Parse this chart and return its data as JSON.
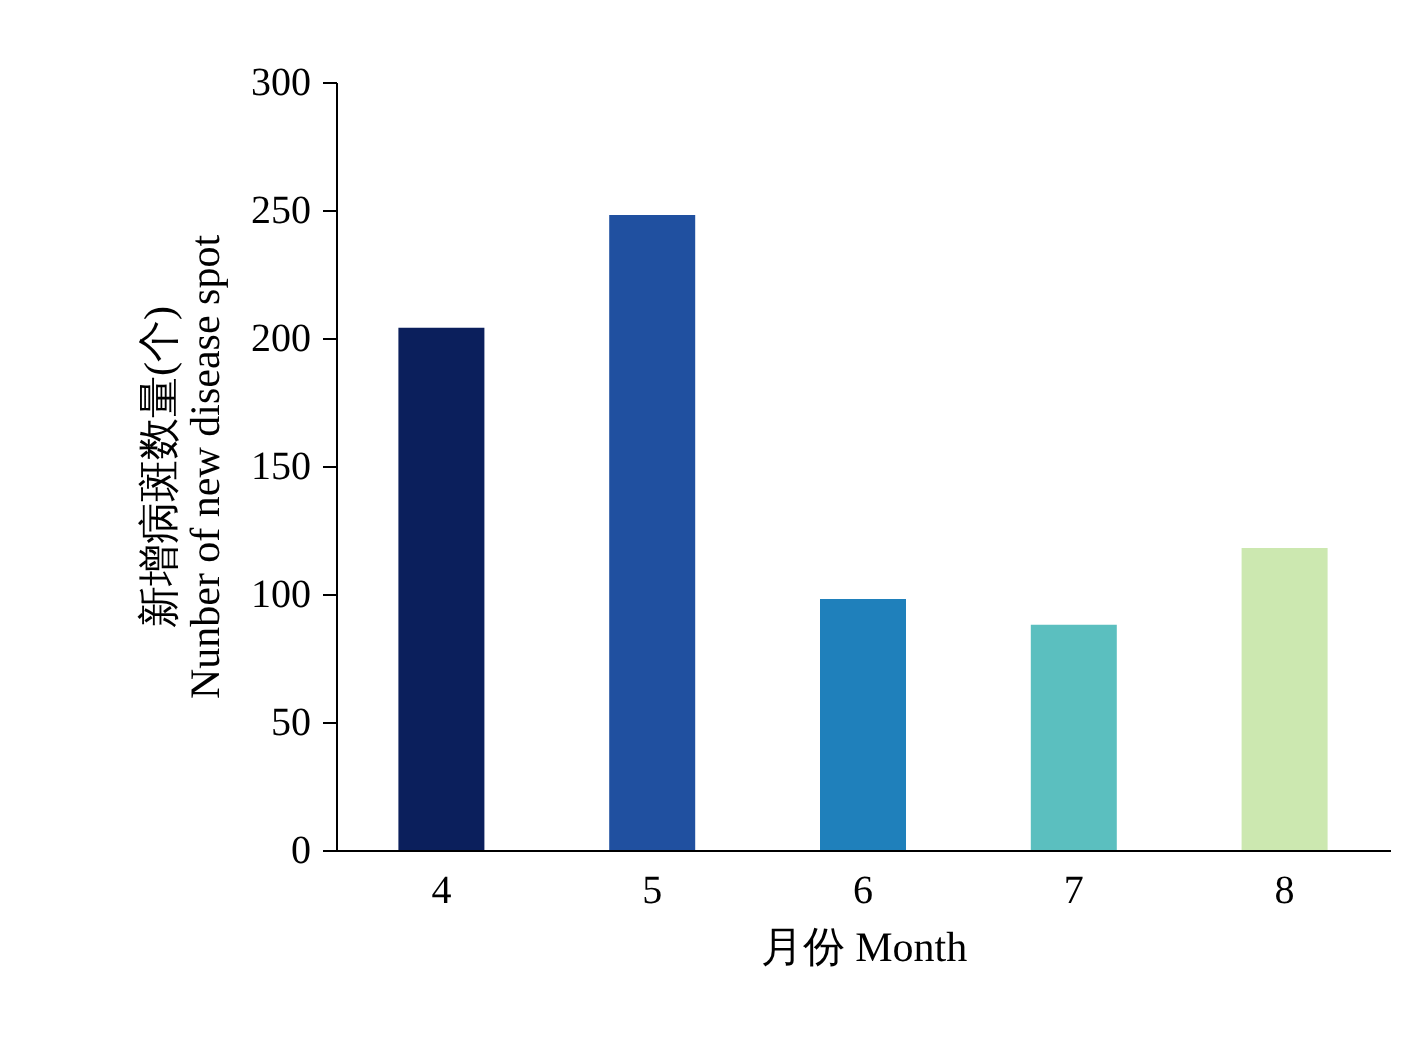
{
  "chart_data": {
    "type": "bar",
    "xlabel": "月份 Month",
    "ylabel": "新增病斑数量(个)\nNunber of new disease spot",
    "categories": [
      "4",
      "5",
      "6",
      "7",
      "8"
    ],
    "values": [
      204,
      248,
      98,
      88,
      118
    ],
    "colors": [
      "#0b1f5c",
      "#2050a0",
      "#1f80bb",
      "#5bbfbf",
      "#cce8b0"
    ],
    "ylim": [
      0,
      300
    ],
    "yticks": [
      0,
      50,
      100,
      150,
      200,
      250,
      300
    ],
    "grid": false,
    "legend": false
  }
}
